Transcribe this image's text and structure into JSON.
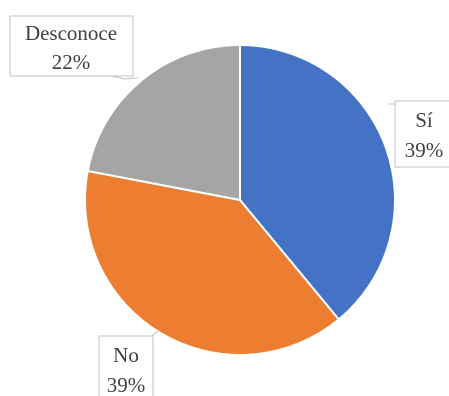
{
  "chart_data": {
    "type": "pie",
    "title": "",
    "categories": [
      "Sí",
      "No",
      "Desconoce"
    ],
    "values": [
      39,
      39,
      22
    ],
    "labels": [
      "39%",
      "39%",
      "22%"
    ],
    "colors": [
      "#4472c4",
      "#ed7d31",
      "#a5a5a5"
    ],
    "start_angle_deg": 0,
    "direction": "clockwise",
    "legend": "none",
    "data_labels": "callouts"
  }
}
